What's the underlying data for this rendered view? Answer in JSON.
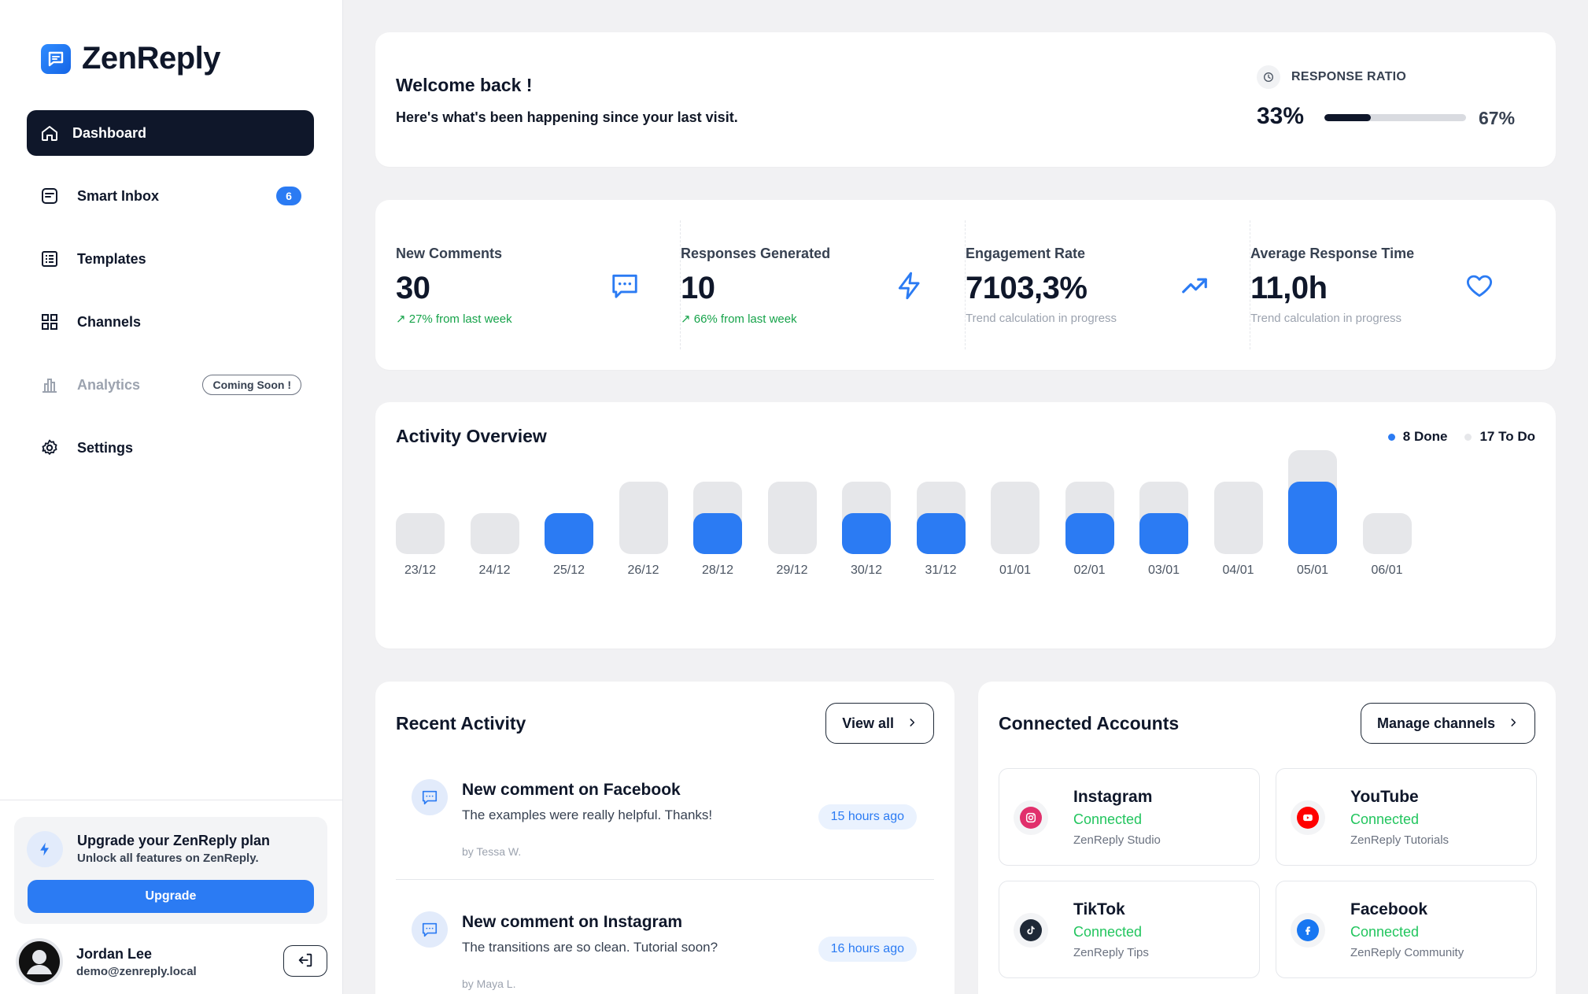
{
  "brand": {
    "name": "ZenReply",
    "accent": "#2b7bf3",
    "dark": "#0f172a"
  },
  "sidebar": {
    "items": [
      {
        "label": "Dashboard",
        "icon": "home-icon"
      },
      {
        "label": "Smart Inbox",
        "icon": "inbox-icon",
        "badge": "6"
      },
      {
        "label": "Templates",
        "icon": "list-icon"
      },
      {
        "label": "Channels",
        "icon": "grid-icon"
      },
      {
        "label": "Analytics",
        "icon": "bar-chart-icon",
        "tag": "Coming Soon !"
      },
      {
        "label": "Settings",
        "icon": "gear-icon"
      }
    ],
    "upgrade": {
      "title": "Upgrade your ZenReply plan",
      "subtitle": "Unlock all features on ZenReply.",
      "button": "Upgrade"
    },
    "user": {
      "name": "Jordan Lee",
      "email": "demo@zenreply.local"
    }
  },
  "welcome": {
    "title": "Welcome back !",
    "subtitle": "Here's what's been happening since your last visit.",
    "ratio_label": "RESPONSE RATIO",
    "ratio_left": "33%",
    "ratio_right": "67%",
    "ratio_value": 0.33
  },
  "stats": [
    {
      "label": "New Comments",
      "value": "30",
      "trend": "↗ 27% from last week",
      "trend_color": "green",
      "icon": "chat-icon"
    },
    {
      "label": "Responses Generated",
      "value": "10",
      "trend": "↗ 66% from last week",
      "trend_color": "green",
      "icon": "bolt-icon"
    },
    {
      "label": "Engagement Rate",
      "value": "7103,3%",
      "trend": "Trend calculation in progress",
      "trend_color": "gray",
      "icon": "trending-up-icon"
    },
    {
      "label": "Average Response Time",
      "value": "11,0h",
      "trend": "Trend calculation in progress",
      "trend_color": "gray",
      "icon": "heart-icon"
    }
  ],
  "activity": {
    "title": "Activity Overview",
    "legend_done": "8 Done",
    "legend_todo": "17 To Do",
    "done_color": "#2b7bf3",
    "todo_color": "#e6e7ea"
  },
  "chart_data": {
    "type": "bar",
    "categories": [
      "23/12",
      "24/12",
      "25/12",
      "26/12",
      "28/12",
      "29/12",
      "30/12",
      "31/12",
      "01/01",
      "02/01",
      "03/01",
      "04/01",
      "05/01",
      "06/01"
    ],
    "series": [
      {
        "name": "Done",
        "values": [
          0,
          0,
          1,
          0,
          1,
          0,
          1,
          1,
          0,
          1,
          1,
          0,
          2,
          0
        ]
      },
      {
        "name": "To Do",
        "values": [
          1,
          1,
          0,
          2,
          1,
          2,
          1,
          1,
          2,
          1,
          1,
          2,
          1,
          1
        ]
      }
    ],
    "stacked": true
  },
  "recent": {
    "title": "Recent Activity",
    "view_all": "View all",
    "items": [
      {
        "title": "New comment on Facebook",
        "text": "The examples were really helpful. Thanks!",
        "by": "by Tessa W.",
        "time": "15 hours ago"
      },
      {
        "title": "New comment on Instagram",
        "text": "The transitions are so clean. Tutorial soon?",
        "by": "by Maya L.",
        "time": "16 hours ago"
      }
    ]
  },
  "connected": {
    "title": "Connected Accounts",
    "manage": "Manage channels",
    "accounts": [
      {
        "name": "Instagram",
        "status": "Connected",
        "handle": "ZenReply Studio",
        "icon": "instagram-icon",
        "color": "#e1306c"
      },
      {
        "name": "YouTube",
        "status": "Connected",
        "handle": "ZenReply Tutorials",
        "icon": "youtube-icon",
        "color": "#ff0000"
      },
      {
        "name": "TikTok",
        "status": "Connected",
        "handle": "ZenReply Tips",
        "icon": "tiktok-icon",
        "color": "#1f2937"
      },
      {
        "name": "Facebook",
        "status": "Connected",
        "handle": "ZenReply Community",
        "icon": "facebook-icon",
        "color": "#1877f2"
      }
    ]
  }
}
